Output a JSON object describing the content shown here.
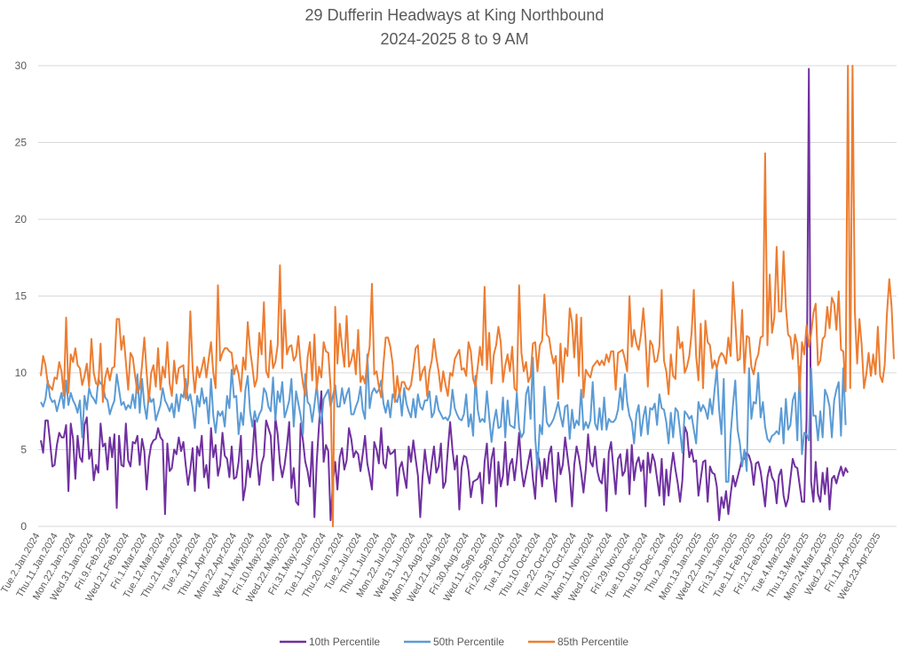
{
  "chart_data": {
    "type": "line",
    "title": "29 Dufferin Headways at King Northbound",
    "subtitle": "2024-2025 8 to 9 AM",
    "xlabel": "",
    "ylabel": "",
    "ylim": [
      0,
      30
    ],
    "yticks": [
      0,
      5,
      10,
      15,
      20,
      25,
      30
    ],
    "grid": true,
    "legend_position": "bottom",
    "x_tick_labels": [
      "Tue.2.Jan.2024",
      "Thu.11.Jan.2024",
      "Mon.22.Jan.2024",
      "Wed.31.Jan.2024",
      "Fri.9.Feb.2024",
      "Wed.21.Feb.2024",
      "Fri.1.Mar.2024",
      "Tue.12.Mar.2024",
      "Thu.21.Mar.2024",
      "Tue.2.Apr.2024",
      "Thu.11.Apr.2024",
      "Mon.22.Apr.2024",
      "Wed.1.May.2024",
      "Fri.10.May.2024",
      "Wed.22.May.2024",
      "Fri.31.May.2024",
      "Tue.11.Jun.2024",
      "Thu.20.Jun.2024",
      "Tue.2.Jul.2024",
      "Thu.11.Jul.2024",
      "Mon.22.Jul.2024",
      "Wed.31.Jul.2024",
      "Mon.12.Aug.2024",
      "Wed.21.Aug.2024",
      "Fri.30.Aug.2024",
      "Wed.11.Sep.2024",
      "Fri.20.Sep.2024",
      "Tue.1.Oct.2024",
      "Thu.10.Oct.2024",
      "Tue.22.Oct.2024",
      "Thu.31.Oct.2024",
      "Mon.11.Nov.2024",
      "Wed.20.Nov.2024",
      "Fri.29.Nov.2024",
      "Tue.10.Dec.2024",
      "Thu.19.Dec.2024",
      "Thu.2.Jan.2025",
      "Mon.13.Jan.2025",
      "Wed.22.Jan.2025",
      "Fri.31.Jan.2025",
      "Tue.11.Feb.2025",
      "Fri.21.Feb.2025",
      "Tue.4.Mar.2025",
      "Thu.13.Mar.2025",
      "Mon.24.Mar.2025",
      "Wed.2.Apr.2025",
      "Fri.11.Apr.2025",
      "Wed.23.Apr.2025"
    ],
    "points_per_tick": 7,
    "series": [
      {
        "name": "10th Percentile",
        "color": "#7030a0",
        "values": [
          5.6,
          4.8,
          6.9,
          6.9,
          5.5,
          3.9,
          4.0,
          5.3,
          6.1,
          5.8,
          5.8,
          6.6,
          2.3,
          6.7,
          5.7,
          3.1,
          5.9,
          4.5,
          4.2,
          6.6,
          7.1,
          4.4,
          5.0,
          3.0,
          4.0,
          3.5,
          6.7,
          5.2,
          5.4,
          3.7,
          5.8,
          4.5,
          6.0,
          1.2,
          5.9,
          4.0,
          3.9,
          6.7,
          4.3,
          3.9,
          5.5,
          5.4,
          5.9,
          4.0,
          5.7,
          4.9,
          2.4,
          4.4,
          5.3,
          5.6,
          5.7,
          6.4,
          5.8,
          5.6,
          0.8,
          5.4,
          3.6,
          3.8,
          5.0,
          4.7,
          5.8,
          4.9,
          5.5,
          4.0,
          2.7,
          3.7,
          5.1,
          2.3,
          5.2,
          4.6,
          5.9,
          3.2,
          4.0,
          2.5,
          6.4,
          4.5,
          5.3,
          3.3,
          4.0,
          6.1,
          4.6,
          4.4,
          3.2,
          5.2,
          3.1,
          3.2,
          4.2,
          5.9,
          1.7,
          2.6,
          4.3,
          3.2,
          4.5,
          6.9,
          4.4,
          2.7,
          4.1,
          4.6,
          6.9,
          6.4,
          5.9,
          3.0,
          7.1,
          6.0,
          4.1,
          3.2,
          4.0,
          5.2,
          6.8,
          2.5,
          3.8,
          1.6,
          1.4,
          6.7,
          5.6,
          4.2,
          3.6,
          2.6,
          5.5,
          0.6,
          4.2,
          6.6,
          8.8,
          4.2,
          5.3,
          4.9,
          0.4,
          2.9,
          4.2,
          2.4,
          4.5,
          5.1,
          3.7,
          4.3,
          6.4,
          5.7,
          4.5,
          4.9,
          4.7,
          3.6,
          4.7,
          5.9,
          4.1,
          3.3,
          2.4,
          5.5,
          5.0,
          4.1,
          6.4,
          4.1,
          3.8,
          5.2,
          4.7,
          4.8,
          5.0,
          2.0,
          3.8,
          4.2,
          3.3,
          2.5,
          5.2,
          4.2,
          5.6,
          4.4,
          3.3,
          0.6,
          3.2,
          5.0,
          3.7,
          2.8,
          4.2,
          5.2,
          3.5,
          3.9,
          5.4,
          2.5,
          2.9,
          5.0,
          6.8,
          5.0,
          3.7,
          4.6,
          1.1,
          3.8,
          4.6,
          4.5,
          3.6,
          1.9,
          2.9,
          3.0,
          3.1,
          3.5,
          1.5,
          4.2,
          5.4,
          2.8,
          4.4,
          5.1,
          1.3,
          4.2,
          2.6,
          3.3,
          5.5,
          2.7,
          4.0,
          4.4,
          3.0,
          4.3,
          6.1,
          3.7,
          2.6,
          3.4,
          4.2,
          5.0,
          3.1,
          1.8,
          4.8,
          4.1,
          2.6,
          4.4,
          3.1,
          4.7,
          5.2,
          3.0,
          1.6,
          4.8,
          3.4,
          4.0,
          5.8,
          4.6,
          3.4,
          1.3,
          4.0,
          5.2,
          4.5,
          3.5,
          2.2,
          3.7,
          6.0,
          4.2,
          3.9,
          5.2,
          3.6,
          3.0,
          2.8,
          4.4,
          1.0,
          4.8,
          5.5,
          3.8,
          2.1,
          4.4,
          4.7,
          3.3,
          3.6,
          5.0,
          2.1,
          5.3,
          3.0,
          4.1,
          4.5,
          3.6,
          4.3,
          1.3,
          4.8,
          3.5,
          4.7,
          4.2,
          3.1,
          2.0,
          4.4,
          1.4,
          3.7,
          2.0,
          3.6,
          4.8,
          3.7,
          2.8,
          1.6,
          3.0,
          6.5,
          6.1,
          4.5,
          5.0,
          4.2,
          4.3,
          2.0,
          3.1,
          4.2,
          4.3,
          1.6,
          3.9,
          3.5,
          3.4,
          2.6,
          0.4,
          1.9,
          1.2,
          2.3,
          0.8,
          2.1,
          3.3,
          2.6,
          3.2,
          3.8,
          4.4,
          4.4,
          4.8,
          4.6,
          4.1,
          2.7,
          4.1,
          4.2,
          3.6,
          2.5,
          1.3,
          3.2,
          3.9,
          3.2,
          2.9,
          1.5,
          3.3,
          3.7,
          2.0,
          1.3,
          1.8,
          3.1,
          4.4,
          3.9,
          3.8,
          2.7,
          1.6,
          1.6,
          7.0,
          29.8,
          2.9,
          1.6,
          4.2,
          2.1,
          1.6,
          3.5,
          2.1,
          3.8,
          1.1,
          3.1,
          3.3,
          2.8,
          3.4,
          3.9,
          3.3,
          3.8,
          3.5
        ]
      },
      {
        "name": "50th Percentile",
        "color": "#5b9bd5",
        "values": [
          8.1,
          7.8,
          8.3,
          9.5,
          8.4,
          8.1,
          8.2,
          7.5,
          8.1,
          8.7,
          7.7,
          9.5,
          7.9,
          8.7,
          8.2,
          7.9,
          7.4,
          8.2,
          5.8,
          8.5,
          7.6,
          9.0,
          8.5,
          8.3,
          8.0,
          9.6,
          9.3,
          9.2,
          8.4,
          8.2,
          7.3,
          7.8,
          8.2,
          9.9,
          8.9,
          7.9,
          8.1,
          7.6,
          7.9,
          7.7,
          8.6,
          7.7,
          9.9,
          7.4,
          9.6,
          7.9,
          7.0,
          8.6,
          8.1,
          8.3,
          6.9,
          7.4,
          7.9,
          9.0,
          8.2,
          7.9,
          7.5,
          8.0,
          7.1,
          8.6,
          7.5,
          8.6,
          8.4,
          9.6,
          8.2,
          8.6,
          7.7,
          6.4,
          8.5,
          7.8,
          9.0,
          8.0,
          8.4,
          6.7,
          9.6,
          7.2,
          6.1,
          7.5,
          7.2,
          7.5,
          6.5,
          8.5,
          7.7,
          10.2,
          8.4,
          8.5,
          6.0,
          7.4,
          6.6,
          8.9,
          9.8,
          7.5,
          6.5,
          7.5,
          6.8,
          7.3,
          7.6,
          9.0,
          8.7,
          7.8,
          7.5,
          9.7,
          6.9,
          8.8,
          8.1,
          9.4,
          7.1,
          7.6,
          8.2,
          9.6,
          6.5,
          8.8,
          8.0,
          7.2,
          6.0,
          9.9,
          8.1,
          7.9,
          6.8,
          7.9,
          9.2,
          7.5,
          6.7,
          8.3,
          8.6,
          8.9,
          7.8,
          8.5,
          9.2,
          7.8,
          7.8,
          9.0,
          8.0,
          8.6,
          9.0,
          7.3,
          7.3,
          7.8,
          8.2,
          9.1,
          7.6,
          7.0,
          11.2,
          7.7,
          8.7,
          9.0,
          8.7,
          8.9,
          9.5,
          8.0,
          7.4,
          8.2,
          7.1,
          8.6,
          8.3,
          8.1,
          8.8,
          7.2,
          9.0,
          8.0,
          7.5,
          7.1,
          8.3,
          7.1,
          8.6,
          7.8,
          7.6,
          8.2,
          8.2,
          8.8,
          7.1,
          7.4,
          8.5,
          7.6,
          7.3,
          7.0,
          7.1,
          6.9,
          7.3,
          8.9,
          7.7,
          7.3,
          7.0,
          6.9,
          7.3,
          8.6,
          6.5,
          7.3,
          5.9,
          9.8,
          7.6,
          6.8,
          7.0,
          6.8,
          8.8,
          7.1,
          5.5,
          6.8,
          7.6,
          6.4,
          6.5,
          8.4,
          5.8,
          8.2,
          6.6,
          6.5,
          6.4,
          8.7,
          6.4,
          5.8,
          6.1,
          8.6,
          9.1,
          7.0,
          11.0,
          5.8,
          3.7,
          6.6,
          6.0,
          9.1,
          6.8,
          6.5,
          6.7,
          7.0,
          7.5,
          8.1,
          7.2,
          6.5,
          7.8,
          7.9,
          5.7,
          7.6,
          6.4,
          6.9,
          6.6,
          8.9,
          6.3,
          6.8,
          6.4,
          6.9,
          9.4,
          6.7,
          6.3,
          7.7,
          6.3,
          8.4,
          6.3,
          7.0,
          6.8,
          6.8,
          7.0,
          7.6,
          9.0,
          7.6,
          9.9,
          8.1,
          7.2,
          6.8,
          5.4,
          7.3,
          7.9,
          5.9,
          7.1,
          7.8,
          6.0,
          7.7,
          7.6,
          8.0,
          6.6,
          8.6,
          7.7,
          7.6,
          6.8,
          5.4,
          7.4,
          5.8,
          7.7,
          7.5,
          6.2,
          4.8,
          7.5,
          7.3,
          7.0,
          7.2,
          6.3,
          5.4,
          8.1,
          7.5,
          7.9,
          7.6,
          7.0,
          8.3,
          7.3,
          8.9,
          10.3,
          7.6,
          6.0,
          9.6,
          2.9,
          2.9,
          6.0,
          7.9,
          9.5,
          6.3,
          5.4,
          3.9,
          5.0,
          3.6,
          10.3,
          7.0,
          8.1,
          8.0,
          10.0,
          7.1,
          8.1,
          6.5,
          5.7,
          5.5,
          5.9,
          6.0,
          6.2,
          6.0,
          7.7,
          5.4,
          8.3,
          6.3,
          6.6,
          8.2,
          8.7,
          5.6,
          10.4,
          4.7,
          6.1,
          6.0,
          5.6,
          10.3,
          7.2,
          7.2,
          5.6,
          7.5,
          5.8,
          8.9,
          8.5,
          7.8,
          5.8,
          8.2,
          8.9,
          9.4,
          5.9,
          10.3,
          6.6
        ]
      },
      {
        "name": "85th Percentile",
        "color": "#ed7d31",
        "values": [
          9.8,
          11.1,
          10.5,
          9.3,
          9.1,
          8.9,
          9.7,
          9.6,
          10.7,
          10.1,
          8.5,
          13.6,
          8.7,
          11.2,
          10.7,
          11.6,
          10.5,
          10.3,
          9.2,
          9.8,
          10.6,
          9.1,
          12.2,
          10.0,
          9.3,
          9.2,
          11.9,
          8.1,
          9.7,
          10.3,
          9.5,
          10.3,
          10.4,
          13.5,
          13.5,
          11.5,
          12.4,
          10.7,
          8.9,
          11.3,
          11.0,
          9.8,
          8.7,
          9.0,
          10.5,
          12.3,
          10.0,
          8.1,
          10.0,
          10.5,
          9.1,
          11.6,
          8.9,
          10.4,
          9.7,
          12.0,
          9.3,
          8.5,
          10.8,
          9.3,
          10.3,
          10.4,
          10.5,
          8.3,
          9.3,
          14.0,
          10.3,
          8.7,
          10.4,
          9.7,
          10.3,
          11.0,
          9.7,
          10.9,
          12.0,
          10.0,
          9.0,
          15.7,
          10.8,
          11.3,
          11.6,
          11.6,
          11.4,
          11.3,
          9.9,
          10.5,
          9.9,
          8.8,
          11.0,
          10.2,
          13.3,
          11.5,
          10.4,
          9.1,
          9.6,
          12.6,
          11.2,
          14.6,
          10.1,
          9.7,
          12.1,
          10.3,
          10.7,
          11.8,
          17.0,
          10.3,
          14.1,
          11.2,
          11.7,
          11.8,
          10.8,
          11.1,
          12.4,
          10.5,
          9.3,
          8.5,
          11.0,
          12.0,
          9.5,
          12.5,
          8.9,
          10.4,
          9.7,
          12.0,
          11.4,
          11.3,
          9.1,
          0.0,
          14.3,
          10.6,
          13.2,
          11.7,
          10.4,
          13.7,
          10.4,
          10.8,
          11.5,
          9.9,
          12.8,
          9.4,
          9.8,
          9.3,
          10.8,
          11.7,
          15.8,
          9.9,
          10.1,
          9.1,
          8.4,
          10.6,
          12.3,
          12.3,
          11.7,
          10.6,
          8.1,
          9.8,
          8.6,
          9.4,
          9.4,
          9.0,
          8.9,
          9.2,
          10.3,
          11.6,
          11.8,
          9.5,
          10.1,
          10.4,
          8.5,
          10.1,
          10.8,
          12.2,
          11.0,
          10.1,
          8.8,
          10.1,
          9.2,
          8.5,
          10.0,
          9.8,
          10.9,
          11.2,
          11.5,
          10.2,
          10.3,
          9.8,
          12.0,
          11.4,
          9.6,
          9.1,
          10.4,
          11.7,
          10.5,
          15.6,
          10.2,
          12.6,
          9.3,
          11.2,
          11.8,
          13.0,
          12.0,
          9.4,
          10.5,
          11.2,
          10.1,
          11.7,
          9.0,
          8.8,
          15.7,
          11.3,
          10.1,
          10.7,
          9.4,
          9.8,
          11.9,
          12.0,
          10.1,
          11.8,
          12.1,
          15.1,
          12.5,
          12.3,
          11.3,
          10.6,
          11.1,
          8.3,
          11.9,
          9.4,
          11.6,
          11.1,
          14.2,
          13.3,
          11.0,
          13.8,
          9.8,
          13.6,
          8.4,
          10.2,
          9.9,
          9.7,
          10.4,
          10.6,
          10.8,
          10.5,
          10.8,
          10.5,
          11.2,
          10.7,
          11.4,
          11.4,
          8.9,
          11.3,
          11.4,
          11.5,
          10.9,
          10.1,
          15.0,
          11.7,
          12.8,
          11.9,
          11.5,
          12.5,
          14.2,
          12.2,
          9.1,
          12.1,
          11.8,
          10.7,
          10.8,
          11.7,
          15.4,
          10.8,
          10.1,
          8.6,
          11.2,
          9.8,
          9.6,
          13.0,
          11.6,
          12.0,
          10.0,
          10.4,
          11.1,
          12.6,
          15.4,
          11.1,
          9.5,
          13.2,
          9.0,
          13.4,
          12.0,
          11.8,
          10.3,
          10.8,
          10.3,
          11.0,
          11.3,
          11.1,
          10.6,
          12.3,
          11.1,
          15.9,
          13.4,
          10.8,
          10.9,
          14.1,
          10.0,
          12.4,
          12.3,
          10.4,
          9.9,
          10.8,
          11.2,
          12.3,
          12.4,
          24.3,
          11.8,
          16.4,
          12.6,
          13.6,
          18.2,
          14.0,
          14.0,
          17.9,
          14.3,
          12.5,
          12.3,
          10.9,
          12.5,
          11.8,
          8.8,
          12.0,
          11.2,
          13.1,
          11.7,
          12.5,
          13.9,
          14.5,
          10.5,
          10.8,
          12.2,
          12.4,
          14.3,
          12.9,
          14.9,
          14.5,
          12.8,
          15.3,
          11.5,
          11.4,
          8.8,
          30.0,
          9.0,
          30.0,
          14.0,
          10.6,
          13.5,
          11.8,
          9.0,
          9.9,
          11.3,
          9.8,
          11.2,
          9.9,
          13.0,
          9.8,
          9.4,
          10.5,
          13.9,
          16.1,
          14.3,
          10.9
        ]
      }
    ]
  },
  "legend": {
    "items": [
      {
        "label": "10th Percentile",
        "color": "#7030a0"
      },
      {
        "label": "50th Percentile",
        "color": "#5b9bd5"
      },
      {
        "label": "85th Percentile",
        "color": "#ed7d31"
      }
    ]
  }
}
